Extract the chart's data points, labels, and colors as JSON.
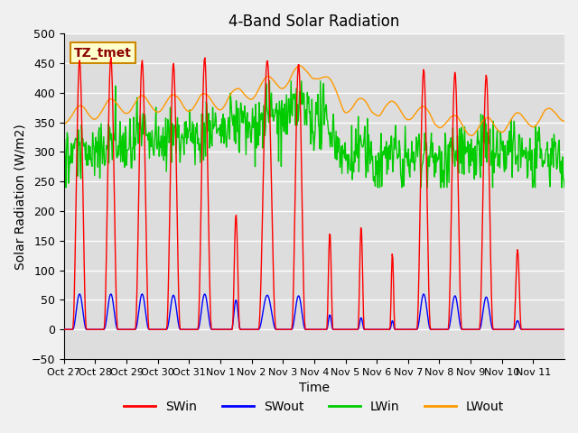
{
  "title": "4-Band Solar Radiation",
  "xlabel": "Time",
  "ylabel": "Solar Radiation (W/m2)",
  "ylim": [
    -50,
    500
  ],
  "tick_labels": [
    "Oct 27",
    "Oct 28",
    "Oct 29",
    "Oct 30",
    "Oct 31",
    "Nov 1",
    "Nov 2",
    "Nov 3",
    "Nov 4",
    "Nov 5",
    "Nov 6",
    "Nov 7",
    "Nov 8",
    "Nov 9",
    "Nov 10",
    "Nov 11"
  ],
  "annotation_text": "TZ_tmet",
  "annotation_bg": "#ffffcc",
  "annotation_border": "#cc8800",
  "colors": {
    "SWin": "#ff0000",
    "SWout": "#0000ff",
    "LWin": "#00cc00",
    "LWout": "#ff9900"
  },
  "background_color": "#dddddd",
  "grid_color": "#ffffff",
  "title_fontsize": 12,
  "axis_fontsize": 10,
  "legend_fontsize": 10
}
